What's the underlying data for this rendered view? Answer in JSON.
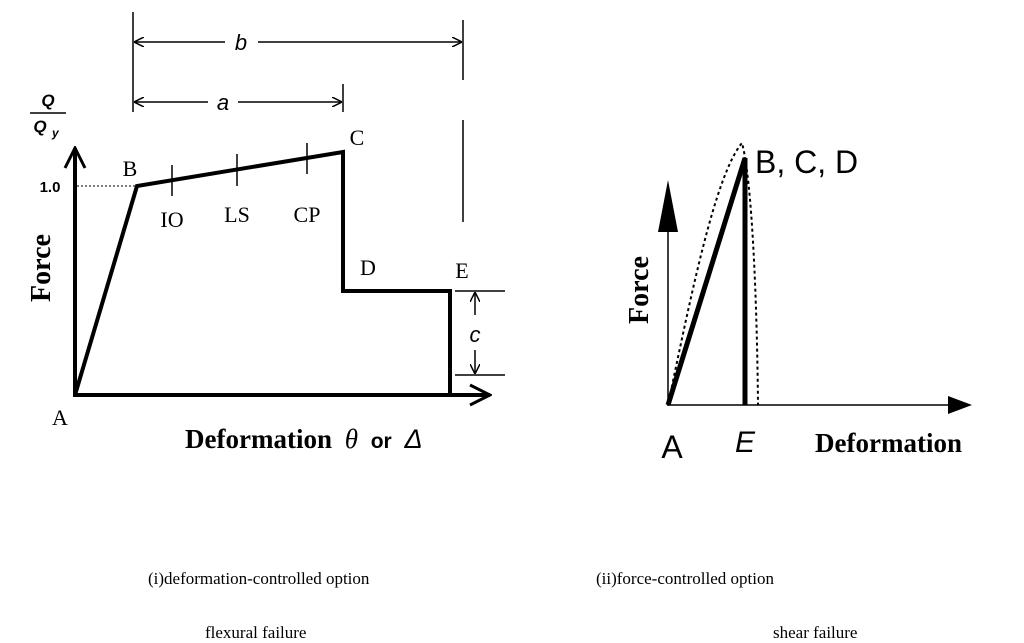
{
  "left_diagram": {
    "dimension_b": "b",
    "dimension_a": "a",
    "y_label_numerator": "Q",
    "y_label_denominator": "Q",
    "y_label_subscript": "y",
    "yield_value": "1.0",
    "y_axis_label": "Force",
    "points": [
      "A",
      "B",
      "C",
      "D",
      "E"
    ],
    "levels": [
      "IO",
      "LS",
      "CP"
    ],
    "dimension_c": "c",
    "x_axis_label": "Deformation",
    "x_symbol_theta": "θ",
    "x_or": "or",
    "x_symbol_delta": "Δ"
  },
  "right_diagram": {
    "y_axis_label": "Force",
    "peak_label": "B, C, D",
    "origin_label": "A",
    "end_label": "E",
    "x_axis_label": "Deformation"
  },
  "captions": {
    "left_option": "(i)deformation-controlled option",
    "right_option": "(ii)force-controlled option",
    "left_failure": "flexural failure",
    "right_failure": "shear failure"
  }
}
